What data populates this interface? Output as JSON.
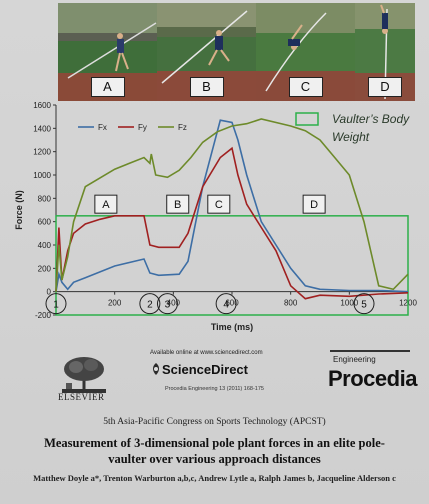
{
  "photos": [
    {
      "label": "A"
    },
    {
      "label": "B"
    },
    {
      "label": "C"
    },
    {
      "label": "D"
    }
  ],
  "chart_data": {
    "type": "line",
    "xlabel": "Time (ms)",
    "ylabel": "Force (N)",
    "xlim": [
      0,
      1200
    ],
    "ylim": [
      -200,
      1600
    ],
    "x_ticks": [
      200,
      400,
      600,
      800,
      1000,
      1200
    ],
    "y_ticks": [
      -200,
      0,
      200,
      400,
      600,
      800,
      1000,
      1200,
      1400,
      1600
    ],
    "grid": false,
    "legend_placement": "top-left",
    "series": [
      {
        "name": "Fx",
        "color": "#3d6ea5",
        "x": [
          0,
          10,
          20,
          40,
          60,
          100,
          200,
          300,
          320,
          350,
          420,
          450,
          500,
          560,
          600,
          620,
          650,
          700,
          750,
          800,
          850,
          900,
          1000,
          1100,
          1200
        ],
        "y": [
          0,
          150,
          80,
          20,
          80,
          120,
          220,
          280,
          160,
          140,
          150,
          260,
          900,
          1470,
          1450,
          1300,
          1000,
          600,
          400,
          200,
          50,
          20,
          10,
          10,
          0
        ]
      },
      {
        "name": "Fy",
        "color": "#a02020",
        "x": [
          0,
          10,
          20,
          40,
          60,
          100,
          150,
          200,
          300,
          320,
          350,
          420,
          450,
          500,
          560,
          600,
          620,
          650,
          700,
          750,
          800,
          850,
          900,
          1000,
          1100,
          1200
        ],
        "y": [
          0,
          550,
          100,
          350,
          500,
          580,
          620,
          650,
          650,
          400,
          380,
          380,
          500,
          900,
          1150,
          1230,
          1000,
          750,
          550,
          350,
          50,
          -60,
          -30,
          -40,
          -20,
          -10
        ]
      },
      {
        "name": "Fz",
        "color": "#6d8a2a",
        "x": [
          0,
          10,
          20,
          40,
          60,
          100,
          200,
          300,
          320,
          325,
          340,
          380,
          420,
          460,
          500,
          550,
          600,
          650,
          700,
          800,
          850,
          900,
          950,
          1000,
          1050,
          1100,
          1150,
          1200
        ],
        "y": [
          0,
          400,
          100,
          300,
          600,
          900,
          1050,
          1150,
          1100,
          1180,
          1000,
          980,
          1040,
          1150,
          1280,
          1370,
          1420,
          1440,
          1480,
          1420,
          1380,
          1300,
          1150,
          1000,
          600,
          50,
          20,
          150
        ]
      }
    ],
    "phase_labels": [
      {
        "label": "A",
        "x": 170,
        "y": 750
      },
      {
        "label": "B",
        "x": 415,
        "y": 750
      },
      {
        "label": "C",
        "x": 555,
        "y": 750
      },
      {
        "label": "D",
        "x": 880,
        "y": 750
      }
    ],
    "event_markers": [
      "1",
      "2",
      "3",
      "4",
      "5"
    ],
    "annotation": "Vaulter’s Body Weight",
    "body_weight_box": {
      "x_range": [
        0,
        1200
      ],
      "y_range": [
        -200,
        650
      ]
    }
  },
  "logos": {
    "elsevier": "ELSEVIER",
    "available": "Available online at www.sciencedirect.com",
    "sciencedirect": "ScienceDirect",
    "procref": "Procedia Engineering 13 (2011) 168-175",
    "engineering": "Engineering",
    "procedia": "Procedia"
  },
  "congress": "5th Asia-Pacific Congress on Sports Technology (APCST)",
  "paper_title": "Measurement of 3-dimensional pole plant forces in an elite pole-vaulter over various approach distances",
  "authors": "Matthew Doyle a*, Trenton Warburton a,b,c, Andrew Lytle a, Ralph James b, Jacqueline Alderson c",
  "colors": {
    "body_weight_box": "#2cb04a",
    "annotation": "#2a3a2a"
  }
}
